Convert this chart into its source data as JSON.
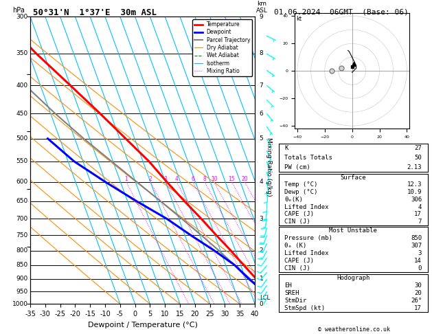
{
  "title_left": "50°31'N  1°37'E  30m ASL",
  "title_right": "01.06.2024  06GMT  (Base: 06)",
  "xlabel": "Dewpoint / Temperature (°C)",
  "p_levels": [
    300,
    350,
    400,
    450,
    500,
    550,
    600,
    650,
    700,
    750,
    800,
    850,
    900,
    950,
    1000
  ],
  "p_min": 300,
  "p_max": 1000,
  "t_min": -35,
  "t_max": 40,
  "skew_factor": 35,
  "temp_profile_p": [
    1000,
    950,
    900,
    850,
    800,
    750,
    700,
    650,
    600,
    550,
    500,
    450,
    400,
    350,
    300
  ],
  "temp_profile_t": [
    12.3,
    11.0,
    8.5,
    6.0,
    3.5,
    0.5,
    -2.5,
    -6.0,
    -9.5,
    -13.0,
    -18.0,
    -23.5,
    -30.0,
    -37.5,
    -45.0
  ],
  "dewp_profile_p": [
    1000,
    950,
    900,
    850,
    800,
    750,
    700,
    650,
    600,
    550,
    500
  ],
  "dewp_profile_t": [
    10.9,
    9.5,
    6.0,
    3.0,
    -2.0,
    -8.0,
    -14.0,
    -22.0,
    -30.0,
    -38.0,
    -44.0
  ],
  "parcel_profile_p": [
    1000,
    950,
    900,
    850,
    800,
    750,
    700,
    650,
    600,
    550,
    500,
    450,
    400
  ],
  "parcel_profile_t": [
    12.3,
    9.5,
    6.5,
    3.0,
    -0.5,
    -4.5,
    -9.0,
    -14.0,
    -19.5,
    -25.5,
    -32.0,
    -38.5,
    -45.0
  ],
  "lcl_p": 975,
  "isotherms": [
    -40,
    -35,
    -30,
    -25,
    -20,
    -15,
    -10,
    -5,
    0,
    5,
    10,
    15,
    20,
    25,
    30,
    35,
    40
  ],
  "dry_adiabats_base": [
    -40,
    -30,
    -20,
    -10,
    0,
    10,
    20,
    30,
    40,
    50
  ],
  "wet_adiabats_base": [
    -10,
    -5,
    0,
    5,
    10,
    15,
    20,
    25,
    30
  ],
  "mixing_ratios": [
    1,
    2,
    3,
    4,
    6,
    8,
    10,
    15,
    20,
    25
  ],
  "km_labels": {
    "300": "9",
    "350": "8",
    "400": "7",
    "450": "6",
    "500": "5",
    "550": "",
    "600": "4",
    "650": "",
    "700": "3",
    "750": "",
    "800": "2",
    "850": "",
    "900": "1",
    "950": "",
    "1000": "0"
  },
  "background_color": "#ffffff",
  "temp_color": "#ff0000",
  "dewp_color": "#0000ff",
  "parcel_color": "#808080",
  "dry_adiabat_color": "#ff8c00",
  "wet_adiabat_color": "#008000",
  "isotherm_color": "#00bfff",
  "mixing_ratio_color": "#ff00ff",
  "stats": {
    "K": 27,
    "Totals Totals": 50,
    "PW (cm)": 2.13,
    "Surface": {
      "Temp (C)": 12.3,
      "Dewp (C)": 10.9,
      "theta_e_K": 306,
      "Lifted Index": 4,
      "CAPE (J)": 17,
      "CIN (J)": 7
    },
    "Most Unstable": {
      "Pressure (mb)": 850,
      "theta_e_K": 307,
      "Lifted Index": 3,
      "CAPE (J)": 14,
      "CIN (J)": 0
    },
    "Hodograph": {
      "EH": 30,
      "SREH": 20,
      "StmDir": "26°",
      "StmSpd (kt)": 17
    }
  }
}
